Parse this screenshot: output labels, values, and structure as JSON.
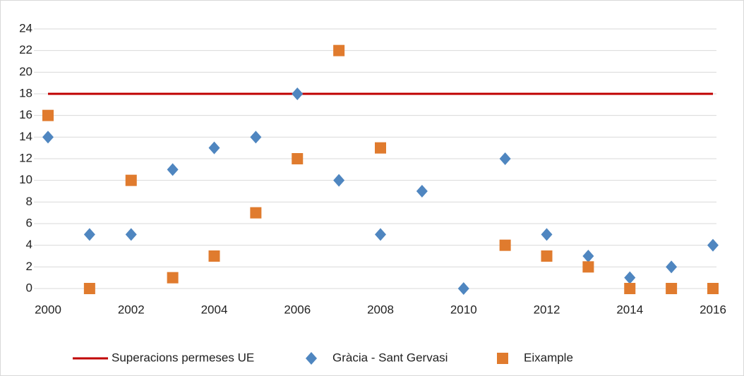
{
  "chart_data": {
    "type": "scatter",
    "x": [
      2000,
      2001,
      2002,
      2003,
      2004,
      2005,
      2006,
      2007,
      2008,
      2009,
      2010,
      2011,
      2012,
      2013,
      2014,
      2015,
      2016
    ],
    "series": [
      {
        "name": "Superacions permeses UE",
        "color": "#c00000",
        "marker": "line",
        "values": [
          18,
          18,
          18,
          18,
          18,
          18,
          18,
          18,
          18,
          18,
          18,
          18,
          18,
          18,
          18,
          18,
          18
        ]
      },
      {
        "name": "Gràcia - Sant Gervasi",
        "color": "#4f86c0",
        "marker": "diamond",
        "values": [
          14,
          5,
          5,
          11,
          13,
          14,
          18,
          10,
          5,
          9,
          0,
          12,
          5,
          3,
          1,
          2,
          4
        ]
      },
      {
        "name": "Eixample",
        "color": "#e07b2e",
        "marker": "square",
        "values": [
          16,
          0,
          10,
          1,
          3,
          7,
          12,
          22,
          13,
          null,
          null,
          4,
          3,
          2,
          0,
          0,
          0
        ]
      }
    ],
    "xlim": [
      2000,
      2016
    ],
    "xticks": [
      2000,
      2002,
      2004,
      2006,
      2008,
      2010,
      2012,
      2014,
      2016
    ],
    "ylim": [
      0,
      24
    ],
    "yticks": [
      0,
      2,
      4,
      6,
      8,
      10,
      12,
      14,
      16,
      18,
      20,
      22,
      24
    ],
    "grid": true,
    "legend": "bottom"
  }
}
